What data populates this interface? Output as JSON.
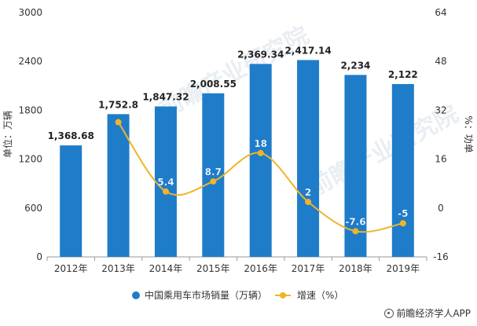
{
  "chart_data": {
    "type": "bar",
    "categories": [
      "2012年",
      "2013年",
      "2014年",
      "2015年",
      "2016年",
      "2017年",
      "2018年",
      "2019年"
    ],
    "series": [
      {
        "name": "中国乘用车市场销量（万辆）",
        "type": "bar",
        "axis": "left",
        "color": "#1f7cc9",
        "values": [
          1368.68,
          1752.8,
          1847.32,
          2008.55,
          2369.34,
          2417.14,
          2234,
          2122
        ],
        "labels": [
          "1,368.68",
          "1,752.8",
          "1,847.32",
          "2,008.55",
          "2,369.34",
          "2,417.14",
          "2,234",
          "2,122"
        ]
      },
      {
        "name": "增速（%）",
        "type": "line",
        "axis": "right",
        "color": "#f0b429",
        "values": [
          null,
          28.1,
          5.4,
          8.7,
          18,
          2,
          -7.6,
          -5
        ],
        "labels": [
          "",
          "",
          "5.4",
          "8.7",
          "18",
          "2",
          "-7.6",
          "-5"
        ]
      }
    ],
    "ylabel": "单位：万辆",
    "y2label": "%：功单",
    "ylim": [
      0,
      3000
    ],
    "y2lim": [
      -16,
      64
    ],
    "yticks": [
      "0",
      "600",
      "1200",
      "1800",
      "2400",
      "3000"
    ],
    "y2ticks": [
      "-16",
      "0",
      "16",
      "32",
      "48",
      "64"
    ],
    "legend_position": "bottom",
    "grid": false
  },
  "watermark": "前瞻产业研究院",
  "branding": "前瞻经济学人APP",
  "colors": {
    "bar": "#1f7cc9",
    "line": "#f0b429",
    "text": "#333333",
    "axis": "#999999"
  }
}
